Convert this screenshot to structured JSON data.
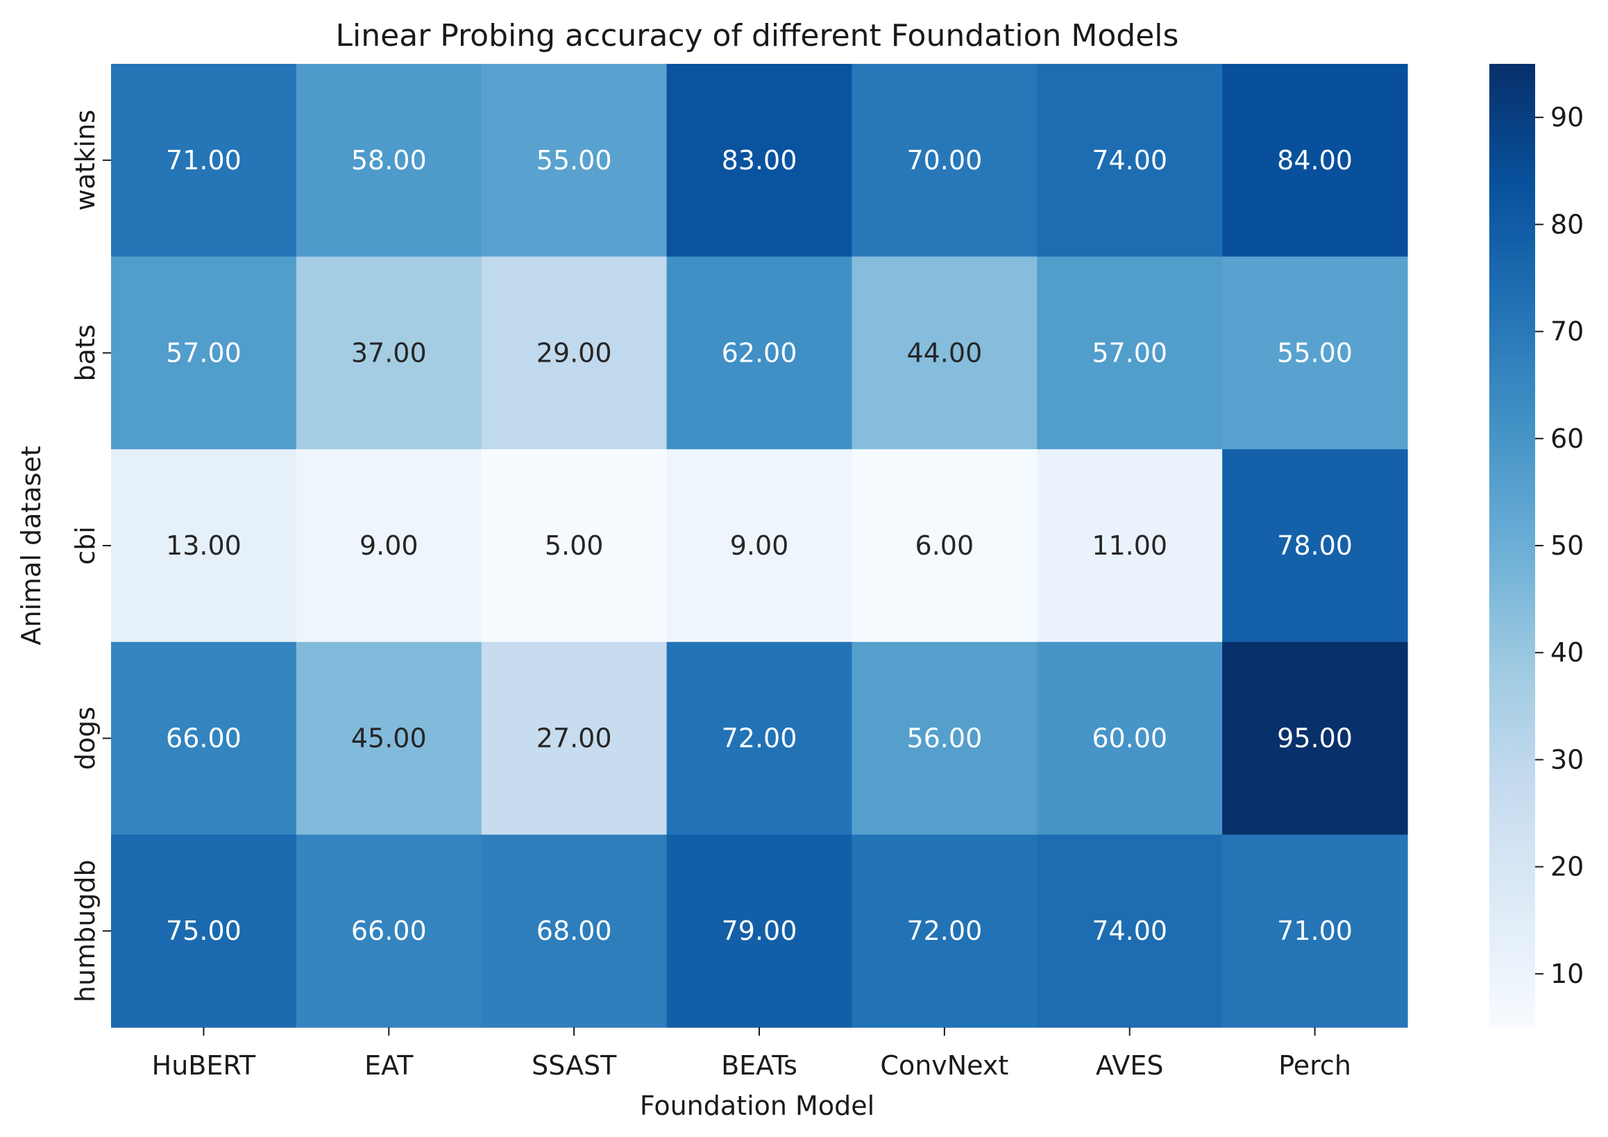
{
  "chart_data": {
    "type": "heatmap",
    "title": "Linear Probing accuracy of different Foundation Models",
    "xlabel": "Foundation Model",
    "ylabel": "Animal dataset",
    "x_categories": [
      "HuBERT",
      "EAT",
      "SSAST",
      "BEATs",
      "ConvNext",
      "AVES",
      "Perch"
    ],
    "y_categories": [
      "watkins",
      "bats",
      "cbi",
      "dogs",
      "humbugdb"
    ],
    "values": [
      [
        71,
        58,
        55,
        83,
        70,
        74,
        84
      ],
      [
        57,
        37,
        29,
        62,
        44,
        57,
        55
      ],
      [
        13,
        9,
        5,
        9,
        6,
        11,
        78
      ],
      [
        66,
        45,
        27,
        72,
        56,
        60,
        95
      ],
      [
        75,
        66,
        68,
        79,
        72,
        74,
        71
      ]
    ],
    "value_labels": [
      [
        "71.00",
        "58.00",
        "55.00",
        "83.00",
        "70.00",
        "74.00",
        "84.00"
      ],
      [
        "57.00",
        "37.00",
        "29.00",
        "62.00",
        "44.00",
        "57.00",
        "55.00"
      ],
      [
        "13.00",
        "9.00",
        "5.00",
        "9.00",
        "6.00",
        "11.00",
        "78.00"
      ],
      [
        "66.00",
        "45.00",
        "27.00",
        "72.00",
        "56.00",
        "60.00",
        "95.00"
      ],
      [
        "75.00",
        "66.00",
        "68.00",
        "79.00",
        "72.00",
        "74.00",
        "71.00"
      ]
    ],
    "colormap": "Blues",
    "colorbar": {
      "range": [
        5,
        95
      ],
      "ticks": [
        10,
        20,
        30,
        40,
        50,
        60,
        70,
        80,
        90
      ],
      "tick_labels": [
        "10",
        "20",
        "30",
        "40",
        "50",
        "60",
        "70",
        "80",
        "90"
      ],
      "placement": "right"
    },
    "grid": false,
    "colors": {
      "text_dark": "#262626",
      "text_light": "#ffffff"
    }
  }
}
